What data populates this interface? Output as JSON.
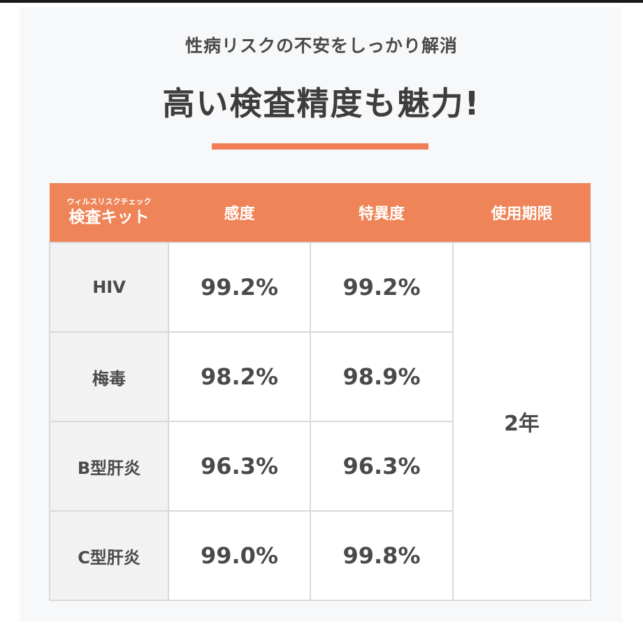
{
  "subtitle": "性病リスクの不安をしっかり解消",
  "title": "高い検査精度も魅力!",
  "colors": {
    "accent": "#ef8458",
    "underline": "#ef7f57",
    "row_header_bg": "#f2f2f2"
  },
  "table": {
    "header": {
      "kit_small": "ウィルスリスクチェック",
      "kit_main": "検査キット",
      "sensitivity": "感度",
      "specificity": "特異度",
      "expiry": "使用期限"
    },
    "rows": [
      {
        "name": "HIV",
        "sensitivity": "99.2%",
        "specificity": "99.2%"
      },
      {
        "name": "梅毒",
        "sensitivity": "98.2%",
        "specificity": "98.9%"
      },
      {
        "name": "B型肝炎",
        "sensitivity": "96.3%",
        "specificity": "96.3%"
      },
      {
        "name": "C型肝炎",
        "sensitivity": "99.0%",
        "specificity": "99.8%"
      }
    ],
    "expiry_value": "2年"
  }
}
